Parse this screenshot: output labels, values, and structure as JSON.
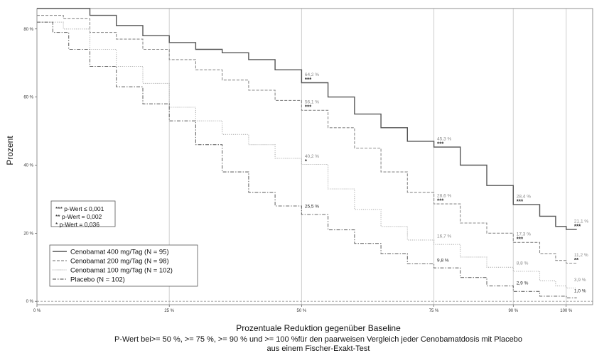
{
  "chart_data": {
    "type": "line",
    "ylabel": "Prozent",
    "xlabel": "Prozentuale Reduktion gegenüber Baseline",
    "footnote_line1": "P-Wert bei>= 50 %, >= 75 %, >= 90 % und >= 100 %für den paarweisen Vergleich jeder Cenobamatdosis mit Placebo",
    "footnote_line2": "aus einem Fischer-Exakt-Test",
    "xlim": [
      0,
      105
    ],
    "ylim": [
      -1,
      86
    ],
    "x_ticks": [
      {
        "value": 0,
        "label": "0 %"
      },
      {
        "value": 25,
        "label": "25 %"
      },
      {
        "value": 50,
        "label": "50 %"
      },
      {
        "value": 75,
        "label": "75 %"
      },
      {
        "value": 90,
        "label": "90 %"
      },
      {
        "value": 100,
        "label": "100 %"
      }
    ],
    "y_ticks": [
      {
        "value": 0,
        "label": "0 %"
      },
      {
        "value": 20,
        "label": "20 %"
      },
      {
        "value": 40,
        "label": "40 %"
      },
      {
        "value": 60,
        "label": "60 %"
      },
      {
        "value": 80,
        "label": "80 %"
      }
    ],
    "vertical_gridlines": [
      25,
      50,
      75,
      90,
      100
    ],
    "series": [
      {
        "name": "Cenobamat 400 mg/Tag (N = 95)",
        "color": "#555555",
        "style": "solid",
        "points": [
          [
            0,
            86
          ],
          [
            5,
            86
          ],
          [
            10,
            84
          ],
          [
            15,
            81
          ],
          [
            20,
            78
          ],
          [
            25,
            76
          ],
          [
            30,
            74
          ],
          [
            35,
            73
          ],
          [
            40,
            71
          ],
          [
            45,
            68
          ],
          [
            50,
            64.2
          ],
          [
            55,
            60
          ],
          [
            60,
            55
          ],
          [
            65,
            51
          ],
          [
            70,
            47
          ],
          [
            75,
            45.3
          ],
          [
            80,
            40
          ],
          [
            85,
            34
          ],
          [
            90,
            28.4
          ],
          [
            95,
            25
          ],
          [
            98,
            22
          ],
          [
            100,
            21.1
          ],
          [
            102,
            21.1
          ]
        ]
      },
      {
        "name": "Cenobamat 200 mg/Tag (N = 98)",
        "color": "#8a8a8a",
        "style": "dashed",
        "points": [
          [
            0,
            84
          ],
          [
            5,
            83
          ],
          [
            10,
            79
          ],
          [
            15,
            77
          ],
          [
            20,
            74
          ],
          [
            25,
            71
          ],
          [
            30,
            68
          ],
          [
            35,
            65
          ],
          [
            40,
            62
          ],
          [
            45,
            59
          ],
          [
            50,
            56.1
          ],
          [
            55,
            51
          ],
          [
            60,
            45
          ],
          [
            65,
            38
          ],
          [
            70,
            32
          ],
          [
            75,
            28.6
          ],
          [
            80,
            23
          ],
          [
            85,
            20
          ],
          [
            90,
            17.3
          ],
          [
            95,
            14
          ],
          [
            98,
            12
          ],
          [
            100,
            11.2
          ],
          [
            102,
            11.2
          ]
        ]
      },
      {
        "name": "Cenobamat 100 mg/Tag (N = 102)",
        "color": "#b0b0b0",
        "style": "dotted",
        "points": [
          [
            0,
            82
          ],
          [
            5,
            80
          ],
          [
            10,
            74
          ],
          [
            15,
            69
          ],
          [
            20,
            64
          ],
          [
            25,
            57
          ],
          [
            30,
            53
          ],
          [
            35,
            49
          ],
          [
            40,
            46
          ],
          [
            45,
            42
          ],
          [
            50,
            40.2
          ],
          [
            55,
            33
          ],
          [
            60,
            27
          ],
          [
            65,
            22
          ],
          [
            70,
            18
          ],
          [
            75,
            16.7
          ],
          [
            80,
            13
          ],
          [
            85,
            10
          ],
          [
            90,
            8.8
          ],
          [
            95,
            6
          ],
          [
            98,
            4.5
          ],
          [
            100,
            3.9
          ],
          [
            102,
            3.9
          ]
        ]
      },
      {
        "name": "Placebo (N = 102)",
        "color": "#6a6a6a",
        "style": "dashdot",
        "points": [
          [
            0,
            82
          ],
          [
            3,
            79
          ],
          [
            6,
            74
          ],
          [
            10,
            69
          ],
          [
            15,
            63
          ],
          [
            20,
            58
          ],
          [
            25,
            53
          ],
          [
            30,
            46
          ],
          [
            35,
            38
          ],
          [
            40,
            32
          ],
          [
            45,
            28
          ],
          [
            50,
            25.5
          ],
          [
            55,
            21
          ],
          [
            60,
            17
          ],
          [
            65,
            14
          ],
          [
            70,
            11
          ],
          [
            75,
            9.8
          ],
          [
            80,
            7
          ],
          [
            85,
            4.5
          ],
          [
            90,
            2.9
          ],
          [
            95,
            1.5
          ],
          [
            100,
            1.0
          ],
          [
            102,
            1.0
          ]
        ]
      }
    ],
    "annotations": [
      {
        "x": 50.6,
        "y": 66.2,
        "text": "64,2 %",
        "sig": "***",
        "color": "#888888"
      },
      {
        "x": 50.6,
        "y": 58.1,
        "text": "56,1 %",
        "sig": "***",
        "color": "#888888"
      },
      {
        "x": 50.6,
        "y": 42.2,
        "text": "40,2 %",
        "sig": "*",
        "color": "#888888"
      },
      {
        "x": 50.6,
        "y": 27.5,
        "text": "25,5 %",
        "sig": "",
        "color": "#222222"
      },
      {
        "x": 75.6,
        "y": 47.3,
        "text": "45,3 %",
        "sig": "***",
        "color": "#888888"
      },
      {
        "x": 75.6,
        "y": 30.6,
        "text": "28,6 %",
        "sig": "***",
        "color": "#888888"
      },
      {
        "x": 75.6,
        "y": 18.7,
        "text": "16,7 %",
        "sig": "",
        "color": "#888888"
      },
      {
        "x": 75.6,
        "y": 11.6,
        "text": "9,8 %",
        "sig": "",
        "color": "#222222"
      },
      {
        "x": 90.6,
        "y": 30.4,
        "text": "28,4 %",
        "sig": "***",
        "color": "#888888"
      },
      {
        "x": 90.6,
        "y": 19.3,
        "text": "17,3 %",
        "sig": "***",
        "color": "#888888"
      },
      {
        "x": 90.6,
        "y": 10.8,
        "text": "8,8 %",
        "sig": "",
        "color": "#888888"
      },
      {
        "x": 90.6,
        "y": 4.9,
        "text": "2,9 %",
        "sig": "",
        "color": "#222222"
      },
      {
        "x": 101.5,
        "y": 23.1,
        "text": "21,1 %",
        "sig": "***",
        "color": "#888888"
      },
      {
        "x": 101.5,
        "y": 13.2,
        "text": "11,2 %",
        "sig": "**",
        "color": "#888888"
      },
      {
        "x": 101.5,
        "y": 5.9,
        "text": "3,9 %",
        "sig": "",
        "color": "#888888"
      },
      {
        "x": 101.5,
        "y": 2.6,
        "text": "1,0 %",
        "sig": "",
        "color": "#222222"
      }
    ],
    "pvalue_box": [
      "*** p-Wert ≤ 0,001",
      "** p-Wert = 0,002",
      "* p-Wert = 0,036"
    ],
    "legend": [
      {
        "label": "Cenobamat 400 mg/Tag (N = 95)",
        "color": "#555555",
        "style": "solid"
      },
      {
        "label": "Cenobamat 200 mg/Tag (N = 98)",
        "color": "#8a8a8a",
        "style": "dashed"
      },
      {
        "label": "Cenobamat 100 mg/Tag (N = 102)",
        "color": "#b0b0b0",
        "style": "dotted"
      },
      {
        "label": "Placebo (N = 102)",
        "color": "#6a6a6a",
        "style": "dashdot"
      }
    ],
    "legend_position": "lower-left"
  }
}
